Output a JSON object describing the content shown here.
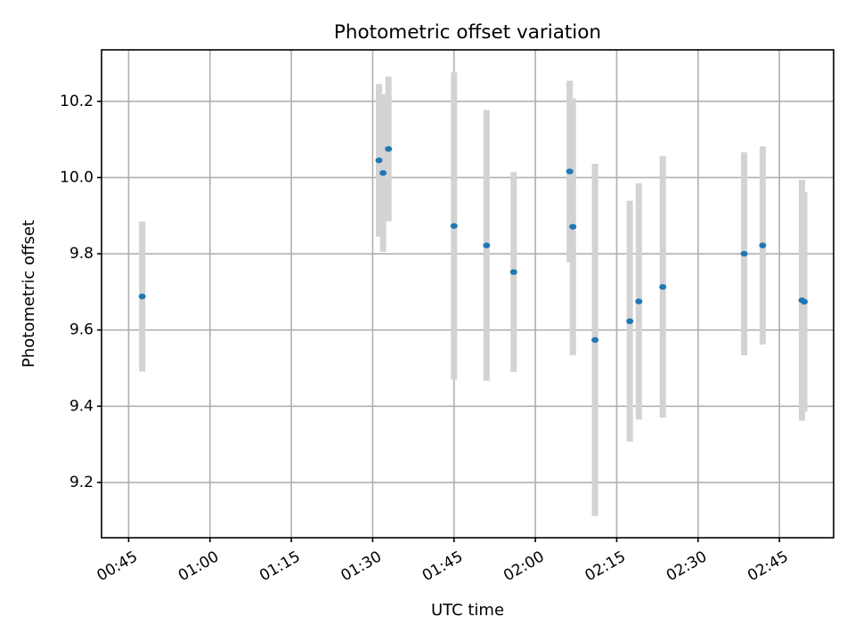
{
  "chart_data": {
    "type": "scatter",
    "title": "Photometric offset variation",
    "xlabel": "UTC time",
    "ylabel": "Photometric offset",
    "x_format": "HH:MM",
    "xlim": [
      "00:40:00",
      "02:55:00"
    ],
    "ylim": [
      9.055,
      10.335
    ],
    "x_ticks": [
      "00:45",
      "01:00",
      "01:15",
      "01:30",
      "01:45",
      "02:00",
      "02:15",
      "02:30",
      "02:45"
    ],
    "y_ticks": [
      9.2,
      9.4,
      9.6,
      9.8,
      10.0,
      10.2
    ],
    "grid": true,
    "marker_color": "#1f77b4",
    "errorbar_color": "#d3d3d3",
    "series": [
      {
        "points": [
          {
            "x": "00:47:30",
            "y": 9.688,
            "yerr": 0.197
          },
          {
            "x": "01:31:10",
            "y": 10.045,
            "yerr": 0.2
          },
          {
            "x": "01:31:55",
            "y": 10.012,
            "yerr": 0.207
          },
          {
            "x": "01:32:55",
            "y": 10.075,
            "yerr": 0.19
          },
          {
            "x": "01:45:00",
            "y": 9.873,
            "yerr": 0.403
          },
          {
            "x": "01:51:00",
            "y": 9.822,
            "yerr": 0.355
          },
          {
            "x": "01:56:00",
            "y": 9.752,
            "yerr": 0.262
          },
          {
            "x": "02:06:20",
            "y": 10.016,
            "yerr": 0.238
          },
          {
            "x": "02:06:55",
            "y": 9.871,
            "yerr": 0.337
          },
          {
            "x": "02:11:00",
            "y": 9.574,
            "yerr": 0.462
          },
          {
            "x": "02:17:25",
            "y": 9.623,
            "yerr": 0.316
          },
          {
            "x": "02:19:05",
            "y": 9.675,
            "yerr": 0.31
          },
          {
            "x": "02:23:30",
            "y": 9.713,
            "yerr": 0.343
          },
          {
            "x": "02:38:30",
            "y": 9.8,
            "yerr": 0.266
          },
          {
            "x": "02:41:55",
            "y": 9.822,
            "yerr": 0.26
          },
          {
            "x": "02:49:10",
            "y": 9.678,
            "yerr": 0.316
          },
          {
            "x": "02:49:35",
            "y": 9.674,
            "yerr": 0.288
          }
        ]
      }
    ]
  }
}
